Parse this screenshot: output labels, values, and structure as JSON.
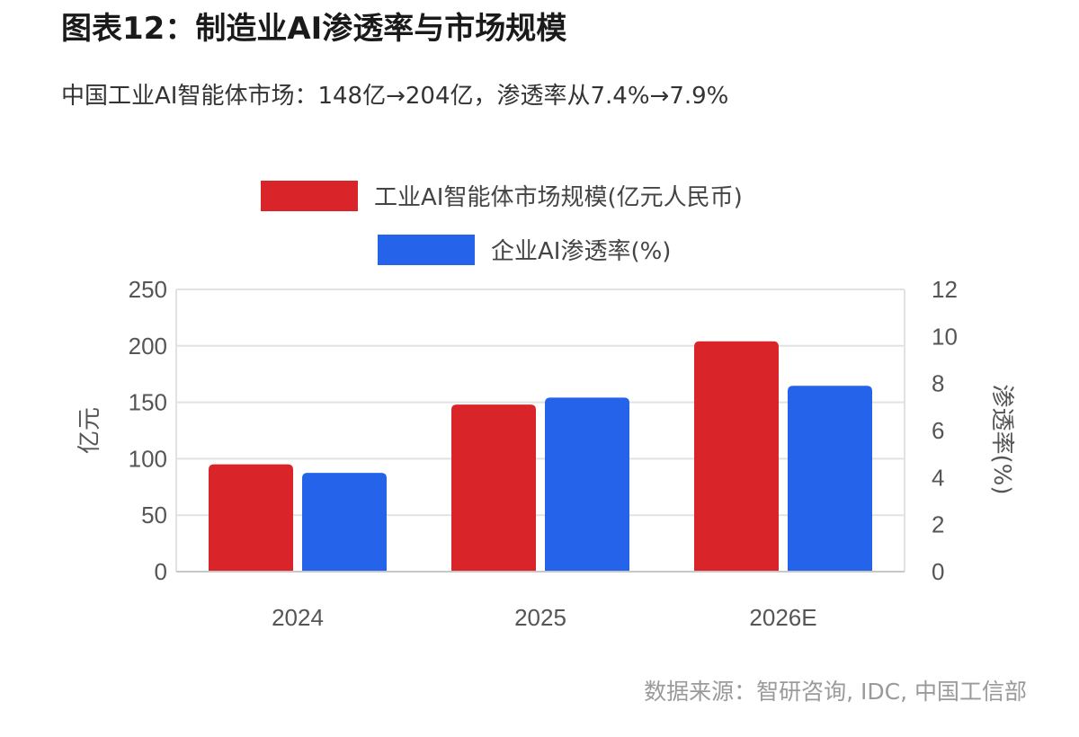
{
  "header": {
    "title": "图表12：制造业AI渗透率与市场规模",
    "subtitle": "中国工业AI智能体市场：148亿→204亿，渗透率从7.4%→7.9%"
  },
  "footer": {
    "source": "数据来源：智研咨询, IDC, 中国工信部"
  },
  "chart_data": {
    "type": "bar",
    "categories": [
      "2024",
      "2025",
      "2026E"
    ],
    "series": [
      {
        "name": "工业AI智能体市场规模(亿元人民币)",
        "axis": "left",
        "color": "#d9252a",
        "values": [
          95,
          148,
          204
        ]
      },
      {
        "name": "企业AI渗透率(%)",
        "axis": "right",
        "color": "#2563eb",
        "values": [
          4.2,
          7.4,
          7.9
        ]
      }
    ],
    "ylabel": "亿元",
    "ylabel_right": "渗透率(%)",
    "ylim": [
      0,
      250
    ],
    "ylim_right": [
      0,
      12
    ],
    "yticks": [
      "0",
      "50",
      "100",
      "150",
      "200",
      "250"
    ],
    "yticks_right": [
      "0",
      "2",
      "4",
      "6",
      "8",
      "10",
      "12"
    ],
    "grid": true,
    "legend_position": "top"
  }
}
